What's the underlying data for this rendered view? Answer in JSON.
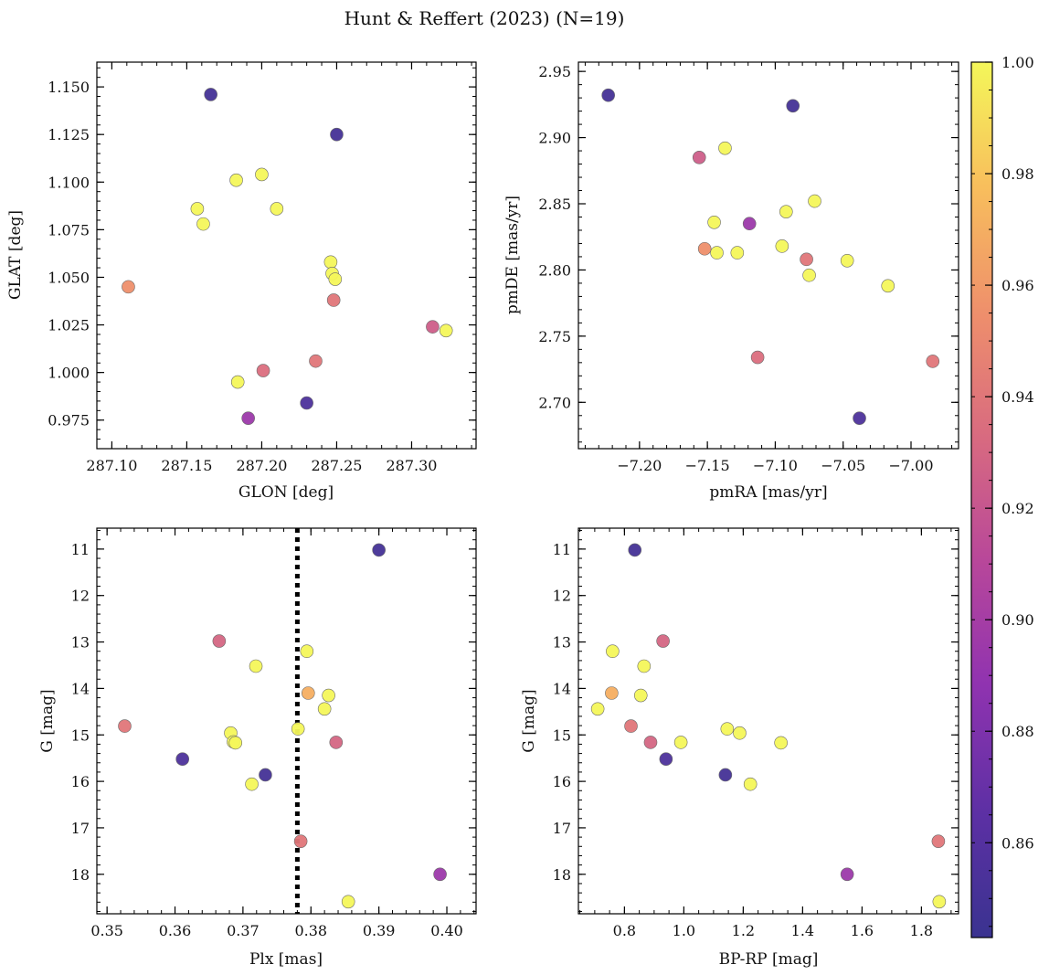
{
  "figure": {
    "title": "Hunt & Reffert (2023) (N=19)"
  },
  "colorbar": {
    "colormap": "plasma",
    "vmin": 0.843,
    "vmax": 1.0,
    "ticks": [
      0.86,
      0.88,
      0.9,
      0.92,
      0.94,
      0.96,
      0.98,
      1.0
    ],
    "tick_labels": [
      "0.86",
      "0.88",
      "0.90",
      "0.92",
      "0.94",
      "0.96",
      "0.98",
      "1.00"
    ]
  },
  "chart_data": [
    {
      "type": "scatter",
      "xlabel": "GLON [deg]",
      "ylabel": "GLAT [deg]",
      "xlim": [
        287.09,
        287.343
      ],
      "ylim": [
        0.96,
        1.163
      ],
      "y_inverted": false,
      "xticks": [
        287.1,
        287.15,
        287.2,
        287.25,
        287.3
      ],
      "xtick_labels": [
        "287.10",
        "287.15",
        "287.20",
        "287.25",
        "287.30"
      ],
      "xminor": 0.01,
      "yticks": [
        0.975,
        1.0,
        1.025,
        1.05,
        1.075,
        1.1,
        1.125,
        1.15
      ],
      "ytick_labels": [
        "0.975",
        "1.000",
        "1.025",
        "1.050",
        "1.075",
        "1.100",
        "1.125",
        "1.150"
      ],
      "yminor": 0.005,
      "points": [
        {
          "x": 287.166,
          "y": 1.146,
          "c": 0.85
        },
        {
          "x": 287.25,
          "y": 1.125,
          "c": 0.85
        },
        {
          "x": 287.183,
          "y": 1.101,
          "c": 1.0
        },
        {
          "x": 287.2,
          "y": 1.104,
          "c": 1.0
        },
        {
          "x": 287.157,
          "y": 1.086,
          "c": 1.0
        },
        {
          "x": 287.21,
          "y": 1.086,
          "c": 1.0
        },
        {
          "x": 287.161,
          "y": 1.078,
          "c": 1.0
        },
        {
          "x": 287.246,
          "y": 1.058,
          "c": 1.0
        },
        {
          "x": 287.247,
          "y": 1.052,
          "c": 1.0
        },
        {
          "x": 287.249,
          "y": 1.049,
          "c": 1.0
        },
        {
          "x": 287.111,
          "y": 1.045,
          "c": 0.955
        },
        {
          "x": 287.248,
          "y": 1.038,
          "c": 0.94
        },
        {
          "x": 287.314,
          "y": 1.024,
          "c": 0.925
        },
        {
          "x": 287.323,
          "y": 1.022,
          "c": 1.0
        },
        {
          "x": 287.236,
          "y": 1.006,
          "c": 0.94
        },
        {
          "x": 287.201,
          "y": 1.001,
          "c": 0.935
        },
        {
          "x": 287.184,
          "y": 0.995,
          "c": 1.0
        },
        {
          "x": 287.23,
          "y": 0.984,
          "c": 0.855
        },
        {
          "x": 287.191,
          "y": 0.976,
          "c": 0.895
        }
      ]
    },
    {
      "type": "scatter",
      "xlabel": "pmRA [mas/yr]",
      "ylabel": "pmDE [mas/yr]",
      "xlim": [
        -7.245,
        -6.965
      ],
      "ylim": [
        2.665,
        2.957
      ],
      "y_inverted": false,
      "xticks": [
        -7.2,
        -7.15,
        -7.1,
        -7.05,
        -7.0
      ],
      "xtick_labels": [
        "−7.20",
        "−7.15",
        "−7.10",
        "−7.05",
        "−7.00"
      ],
      "xminor": 0.01,
      "yticks": [
        2.7,
        2.75,
        2.8,
        2.85,
        2.9,
        2.95
      ],
      "ytick_labels": [
        "2.70",
        "2.75",
        "2.80",
        "2.85",
        "2.90",
        "2.95"
      ],
      "yminor": 0.01,
      "points": [
        {
          "x": -7.223,
          "y": 2.932,
          "c": 0.85
        },
        {
          "x": -7.087,
          "y": 2.924,
          "c": 0.85
        },
        {
          "x": -7.137,
          "y": 2.892,
          "c": 1.0
        },
        {
          "x": -7.156,
          "y": 2.885,
          "c": 0.925
        },
        {
          "x": -7.071,
          "y": 2.852,
          "c": 1.0
        },
        {
          "x": -7.092,
          "y": 2.844,
          "c": 1.0
        },
        {
          "x": -7.145,
          "y": 2.836,
          "c": 1.0
        },
        {
          "x": -7.119,
          "y": 2.835,
          "c": 0.895
        },
        {
          "x": -7.095,
          "y": 2.818,
          "c": 1.0
        },
        {
          "x": -7.152,
          "y": 2.816,
          "c": 0.955
        },
        {
          "x": -7.143,
          "y": 2.813,
          "c": 1.0
        },
        {
          "x": -7.128,
          "y": 2.813,
          "c": 1.0
        },
        {
          "x": -7.077,
          "y": 2.808,
          "c": 0.94
        },
        {
          "x": -7.047,
          "y": 2.807,
          "c": 1.0
        },
        {
          "x": -7.075,
          "y": 2.796,
          "c": 1.0
        },
        {
          "x": -7.017,
          "y": 2.788,
          "c": 1.0
        },
        {
          "x": -7.113,
          "y": 2.734,
          "c": 0.935
        },
        {
          "x": -6.984,
          "y": 2.731,
          "c": 0.94
        },
        {
          "x": -7.038,
          "y": 2.688,
          "c": 0.855
        }
      ]
    },
    {
      "type": "scatter",
      "xlabel": "Plx [mas]",
      "ylabel": "G [mag]",
      "xlim": [
        0.3485,
        0.4043
      ],
      "ylim": [
        10.55,
        18.85
      ],
      "y_inverted": true,
      "xticks": [
        0.35,
        0.36,
        0.37,
        0.38,
        0.39,
        0.4
      ],
      "xtick_labels": [
        "0.35",
        "0.36",
        "0.37",
        "0.38",
        "0.39",
        "0.40"
      ],
      "xminor": 0.002,
      "yticks": [
        11,
        12,
        13,
        14,
        15,
        16,
        17,
        18
      ],
      "ytick_labels": [
        "11",
        "12",
        "13",
        "14",
        "15",
        "16",
        "17",
        "18"
      ],
      "yminor": 0.2,
      "vline": {
        "x": 0.378,
        "style": "dotted"
      },
      "points": [
        {
          "x": 0.39,
          "y": 11.02,
          "c": 0.85
        },
        {
          "x": 0.3665,
          "y": 12.98,
          "c": 0.93
        },
        {
          "x": 0.3794,
          "y": 13.2,
          "c": 1.0
        },
        {
          "x": 0.3719,
          "y": 13.52,
          "c": 1.0
        },
        {
          "x": 0.3796,
          "y": 14.1,
          "c": 0.97
        },
        {
          "x": 0.3826,
          "y": 14.15,
          "c": 1.0
        },
        {
          "x": 0.382,
          "y": 14.44,
          "c": 1.0
        },
        {
          "x": 0.3526,
          "y": 14.81,
          "c": 0.94
        },
        {
          "x": 0.3781,
          "y": 14.87,
          "c": 1.0
        },
        {
          "x": 0.3682,
          "y": 14.96,
          "c": 1.0
        },
        {
          "x": 0.3686,
          "y": 15.15,
          "c": 1.0
        },
        {
          "x": 0.3689,
          "y": 15.17,
          "c": 1.0
        },
        {
          "x": 0.3837,
          "y": 15.16,
          "c": 0.93
        },
        {
          "x": 0.3611,
          "y": 15.52,
          "c": 0.855
        },
        {
          "x": 0.3733,
          "y": 15.86,
          "c": 0.85
        },
        {
          "x": 0.3713,
          "y": 16.06,
          "c": 1.0
        },
        {
          "x": 0.3785,
          "y": 17.29,
          "c": 0.94
        },
        {
          "x": 0.399,
          "y": 18.0,
          "c": 0.895
        },
        {
          "x": 0.3855,
          "y": 18.59,
          "c": 1.0
        }
      ]
    },
    {
      "type": "scatter",
      "xlabel": "BP-RP [mag]",
      "ylabel": "G [mag]",
      "xlim": [
        0.645,
        1.925
      ],
      "ylim": [
        10.55,
        18.85
      ],
      "y_inverted": true,
      "xticks": [
        0.8,
        1.0,
        1.2,
        1.4,
        1.6,
        1.8
      ],
      "xtick_labels": [
        "0.8",
        "1.0",
        "1.2",
        "1.4",
        "1.6",
        "1.8"
      ],
      "xminor": 0.05,
      "yticks": [
        11,
        12,
        13,
        14,
        15,
        16,
        17,
        18
      ],
      "ytick_labels": [
        "11",
        "12",
        "13",
        "14",
        "15",
        "16",
        "17",
        "18"
      ],
      "yminor": 0.2,
      "points": [
        {
          "x": 0.835,
          "y": 11.02,
          "c": 0.85
        },
        {
          "x": 0.93,
          "y": 12.98,
          "c": 0.93
        },
        {
          "x": 0.76,
          "y": 13.2,
          "c": 1.0
        },
        {
          "x": 0.866,
          "y": 13.52,
          "c": 1.0
        },
        {
          "x": 0.757,
          "y": 14.1,
          "c": 0.97
        },
        {
          "x": 0.855,
          "y": 14.15,
          "c": 1.0
        },
        {
          "x": 0.71,
          "y": 14.44,
          "c": 1.0
        },
        {
          "x": 0.822,
          "y": 14.81,
          "c": 0.94
        },
        {
          "x": 1.146,
          "y": 14.87,
          "c": 1.0
        },
        {
          "x": 1.188,
          "y": 14.96,
          "c": 1.0
        },
        {
          "x": 0.99,
          "y": 15.16,
          "c": 1.0
        },
        {
          "x": 1.327,
          "y": 15.17,
          "c": 1.0
        },
        {
          "x": 0.888,
          "y": 15.16,
          "c": 0.93
        },
        {
          "x": 0.94,
          "y": 15.52,
          "c": 0.855
        },
        {
          "x": 1.14,
          "y": 15.86,
          "c": 0.85
        },
        {
          "x": 1.224,
          "y": 16.06,
          "c": 1.0
        },
        {
          "x": 1.857,
          "y": 17.29,
          "c": 0.94
        },
        {
          "x": 1.55,
          "y": 18.0,
          "c": 0.895
        },
        {
          "x": 1.86,
          "y": 18.59,
          "c": 1.0
        }
      ]
    }
  ]
}
